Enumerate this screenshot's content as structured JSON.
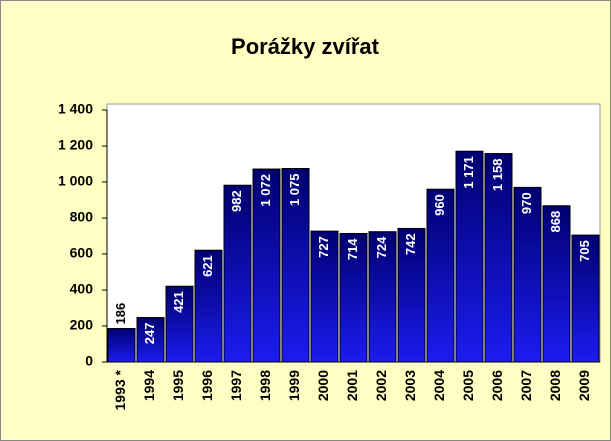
{
  "chart_data": {
    "type": "bar",
    "title": "Porážky zvířat",
    "categories": [
      "1993 *",
      "1994",
      "1995",
      "1996",
      "1997",
      "1998",
      "1999",
      "2000",
      "2001",
      "2002",
      "2003",
      "2004",
      "2005",
      "2006",
      "2007",
      "2008",
      "2009"
    ],
    "values": [
      186,
      247,
      421,
      621,
      982,
      1072,
      1075,
      727,
      714,
      724,
      742,
      960,
      1171,
      1158,
      970,
      868,
      705
    ],
    "value_labels": [
      "186",
      "247",
      "421",
      "621",
      "982",
      "1 072",
      "1 075",
      "727",
      "714",
      "724",
      "742",
      "960",
      "1 171",
      "1 158",
      "970",
      "868",
      "705"
    ],
    "color": "#1c1cf0",
    "ylim": [
      0,
      1400
    ],
    "yticks": [
      0,
      200,
      400,
      600,
      800,
      {
        "value": 1000,
        "label": "1 000"
      },
      {
        "value": 1200,
        "label": "1 200"
      },
      {
        "value": 1400,
        "label": "1 400"
      }
    ],
    "grid": false
  }
}
